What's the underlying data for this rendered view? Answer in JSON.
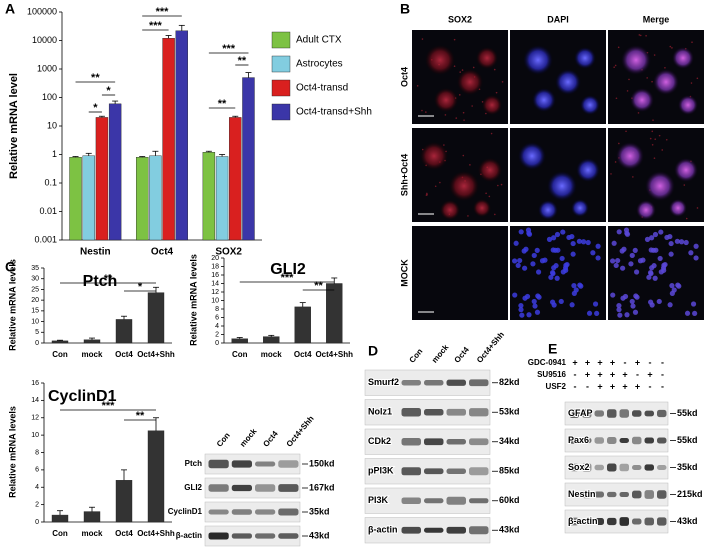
{
  "chart_data": [
    {
      "type": "bar",
      "label": "A",
      "ylabel": "Relative mRNA level",
      "log": true,
      "legend": "right",
      "categories": [
        "Nestin",
        "Oct4",
        "SOX2"
      ],
      "series": [
        {
          "name": "Adult CTX",
          "color": "#7dc243",
          "values": [
            0.8,
            0.8,
            1.2
          ],
          "errors": [
            0.05,
            0.05,
            0.1
          ]
        },
        {
          "name": "Astrocytes",
          "color": "#82cde0",
          "values": [
            0.9,
            0.9,
            0.85
          ],
          "errors": [
            0.2,
            0.4,
            0.15
          ]
        },
        {
          "name": "Oct4-transd",
          "color": "#d9201f",
          "values": [
            20,
            12000,
            20
          ],
          "errors": [
            2,
            3000,
            2
          ]
        },
        {
          "name": "Oct4-transd+Shh",
          "color": "#3b36a8",
          "values": [
            60,
            22000,
            500
          ],
          "errors": [
            15,
            12000,
            250
          ]
        }
      ],
      "ylim": [
        0.001,
        100000
      ],
      "yticks": [
        0.001,
        0.01,
        0.1,
        1,
        10,
        100,
        1000,
        10000,
        100000
      ],
      "annotations": [
        "*",
        "*",
        "**",
        "***",
        "***",
        "**",
        "**",
        "***"
      ]
    },
    {
      "type": "bar",
      "label": "C",
      "title": "Ptch",
      "ylabel": "Relative mRNA levels",
      "categories": [
        "Con",
        "mock",
        "Oct4",
        "Oct4+Shh"
      ],
      "values": [
        1,
        1.5,
        11,
        23.5
      ],
      "errors": [
        0.3,
        0.8,
        1.5,
        2.5
      ],
      "color": "#333333",
      "ylim": [
        0,
        35
      ],
      "yticks": [
        0,
        5,
        10,
        15,
        20,
        25,
        30,
        35
      ],
      "annotations": [
        "**",
        "*"
      ]
    },
    {
      "type": "bar",
      "title": "GLI2",
      "ylabel": "Relative mRNA levels",
      "categories": [
        "Con",
        "mock",
        "Oct4",
        "Oct4+Shh"
      ],
      "values": [
        1,
        1.5,
        8.5,
        14
      ],
      "errors": [
        0.3,
        0.3,
        1,
        1.3
      ],
      "color": "#333333",
      "ylim": [
        0,
        20
      ],
      "yticks": [
        0,
        2,
        4,
        6,
        8,
        10,
        12,
        14,
        16,
        18,
        20
      ],
      "annotations": [
        "***",
        "**"
      ]
    },
    {
      "type": "bar",
      "title": "CyclinD1",
      "ylabel": "Relative mRNA levels",
      "categories": [
        "Con",
        "mock",
        "Oct4",
        "Oct4+Shh"
      ],
      "values": [
        0.8,
        1.2,
        4.8,
        10.5
      ],
      "errors": [
        0.5,
        0.5,
        1.2,
        1.5
      ],
      "color": "#333333",
      "ylim": [
        0,
        16
      ],
      "yticks": [
        0,
        2,
        4,
        6,
        8,
        10,
        12,
        14,
        16
      ],
      "annotations": [
        "***",
        "**"
      ]
    }
  ],
  "panel_b": {
    "label": "B",
    "columns": [
      "SOX2",
      "DAPI",
      "Merge"
    ],
    "rows": [
      "Oct4",
      "Shh+Oct4",
      "MOCK"
    ]
  },
  "blot_c": {
    "lanes": [
      "Con",
      "mock",
      "Oct4",
      "Oct4+Shh"
    ],
    "rows": [
      {
        "name": "Ptch",
        "size": "150kd"
      },
      {
        "name": "GLI2",
        "size": "167kd"
      },
      {
        "name": "CyclinD1",
        "size": "35kd"
      },
      {
        "name": "β-actin",
        "size": "43kd"
      }
    ]
  },
  "panel_d": {
    "label": "D",
    "lanes": [
      "Con",
      "mock",
      "Oct4",
      "Oct4+Shh"
    ],
    "rows": [
      {
        "name": "Smurf2",
        "size": "82kd"
      },
      {
        "name": "Nolz1",
        "size": "53kd"
      },
      {
        "name": "CDk2",
        "size": "34kd"
      },
      {
        "name": "pPI3K",
        "size": "85kd"
      },
      {
        "name": "PI3K",
        "size": "60kd"
      },
      {
        "name": "β-actin",
        "size": "43kd"
      }
    ]
  },
  "panel_e": {
    "label": "E",
    "treatments": [
      {
        "name": "GDC-0941",
        "states": [
          "+",
          "+",
          "+",
          "+",
          "-",
          "+",
          "-",
          "-"
        ]
      },
      {
        "name": "SU9516",
        "states": [
          "-",
          "+",
          "+",
          "+",
          "+",
          "-",
          "+",
          "-"
        ]
      },
      {
        "name": "USF2",
        "states": [
          "-",
          "-",
          "+",
          "+",
          "+",
          "+",
          "-",
          "-"
        ]
      }
    ],
    "rows": [
      {
        "name": "GFAP",
        "size": "55kd"
      },
      {
        "name": "Pax6",
        "size": "55kd"
      },
      {
        "name": "Sox2",
        "size": "35kd"
      },
      {
        "name": "Nestin",
        "size": "215kd"
      },
      {
        "name": "β-actin",
        "size": "43kd"
      }
    ]
  }
}
